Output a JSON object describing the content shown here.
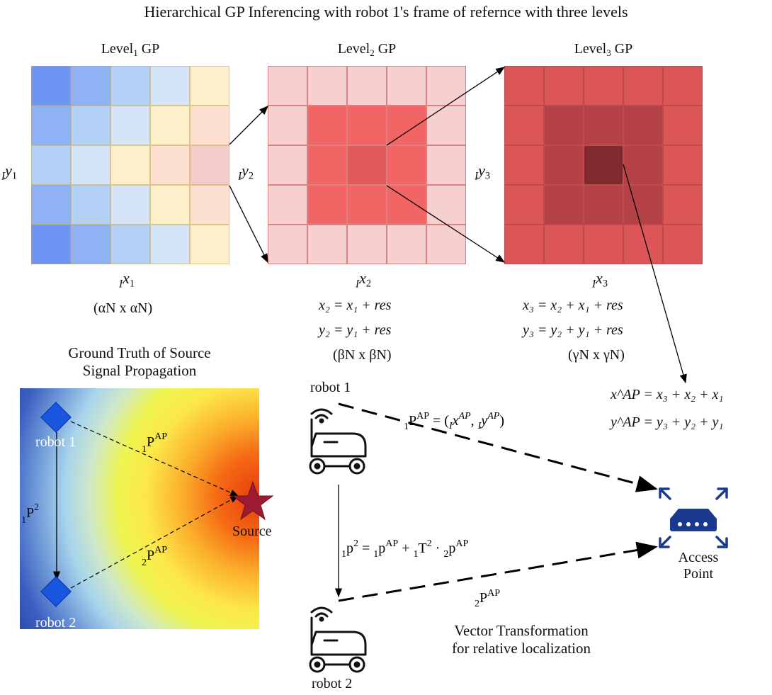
{
  "title": "Hierarchical GP Inferencing with robot 1's frame of refernce with three levels",
  "levels": [
    {
      "name": "Level",
      "index": "1",
      "suffix": " GP",
      "y_label": "y",
      "y_sub": "1",
      "x_label": "x",
      "x_sub": "1",
      "dims": "(αN x αN)"
    },
    {
      "name": "Level",
      "index": "2",
      "suffix": " GP",
      "y_label": "y",
      "y_sub": "2",
      "x_label": "x",
      "x_sub": "2",
      "dims": "(βN x βN)"
    },
    {
      "name": "Level",
      "index": "3",
      "suffix": " GP",
      "y_label": "y",
      "y_sub": "3",
      "x_label": "x",
      "x_sub": "3",
      "dims": "(γN x γN)"
    }
  ],
  "frame_prefix": "I",
  "level1_colors": [
    [
      "#6d95f5",
      "#8fb1f5",
      "#b3d1f6",
      "#d6e4f7",
      "#fdefc9"
    ],
    [
      "#8fb1f5",
      "#b3d1f6",
      "#d6e4f7",
      "#fdefc9",
      "#fde0cf"
    ],
    [
      "#b3d1f6",
      "#d6e4f7",
      "#fdefc9",
      "#fde0cf",
      "#f4cccc"
    ],
    [
      "#8fb1f5",
      "#b3d1f6",
      "#d6e4f7",
      "#fdefc9",
      "#fde0cf"
    ],
    [
      "#6d95f5",
      "#8fb1f5",
      "#b3d1f6",
      "#d6e4f7",
      "#fdefc9"
    ]
  ],
  "level2_colors": {
    "outer": "#f6cfcf",
    "middle": "#f26565",
    "center": "#e05a5a",
    "border": "#d98080"
  },
  "level3_colors": {
    "outer": "#dc5658",
    "middle": "#b34145",
    "center": "#7f2a2d",
    "border": "#c04a4c"
  },
  "equations": {
    "l2_x": "x₂ = x₁ + res",
    "l2_y": "y₂ = y₁ + res",
    "l3_x": "x₃ = x₂ + x₁ + res",
    "l3_y": "y₃ = y₂ + y₁ + res",
    "ap_x": "x^AP = x₃ + x₂ + x₁",
    "ap_y": "y^AP = y₃ + y₂ + y₁",
    "res": "res"
  },
  "ground_truth": {
    "title_line1": "Ground Truth of Source",
    "title_line2": "Signal Propagation",
    "robot1": "robot 1",
    "robot2": "robot 2",
    "source": "Source",
    "vec_1pap": "P",
    "vec_2pap": "P",
    "vec_1p2": "P",
    "ap_sup": "AP",
    "two_sup": "2"
  },
  "transform": {
    "robot1": "robot 1",
    "robot2": "robot 2",
    "access_point_line1": "Access",
    "access_point_line2": "Point",
    "eq_top": "P",
    "eq_mid": "p",
    "vec_bottom": "P",
    "caption_line1": "Vector Transformation",
    "caption_line2": "for relative localization"
  },
  "colors": {
    "accent_blue": "#1a3a8f",
    "robot_marker": "#1a55e0",
    "star": "#9b1b30"
  }
}
